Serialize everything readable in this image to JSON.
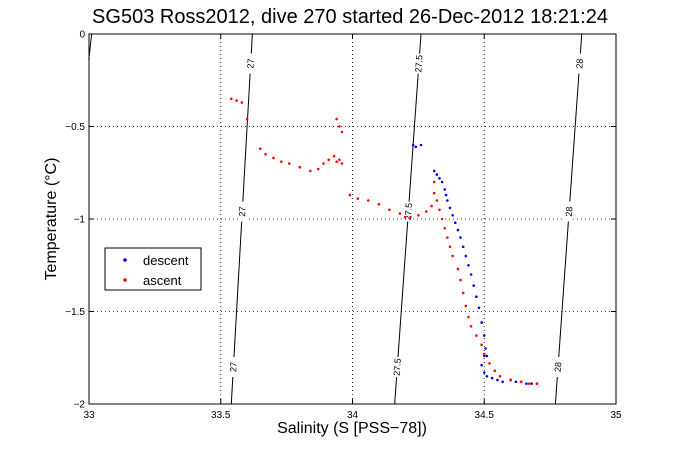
{
  "chart_data": {
    "type": "scatter",
    "title": "SG503 Ross2012, dive 270 started 26-Dec-2012 18:21:24",
    "xlabel": "Salinity (S [PSS−78])",
    "ylabel": "Temperature (°C)",
    "xlim": [
      33,
      35
    ],
    "ylim": [
      -2,
      0
    ],
    "grid": true,
    "legend_position": "left",
    "x_ticks": [
      {
        "value": 33,
        "label": "33"
      },
      {
        "value": 33.5,
        "label": "33.5"
      },
      {
        "value": 34,
        "label": "34"
      },
      {
        "value": 34.5,
        "label": "34.5"
      },
      {
        "value": 35,
        "label": "35"
      }
    ],
    "y_ticks": [
      {
        "value": 0,
        "label": "0"
      },
      {
        "value": -0.5,
        "label": "−0.5"
      },
      {
        "value": -1,
        "label": "−1"
      },
      {
        "value": -1.5,
        "label": "−1.5"
      },
      {
        "value": -2,
        "label": "−2"
      }
    ],
    "contours": [
      {
        "label": "27",
        "points": [
          [
            33.54,
            -2.0
          ],
          [
            33.62,
            0.0
          ]
        ],
        "label_positions": [
          0.1,
          0.52,
          0.92
        ]
      },
      {
        "label": "27.5",
        "points": [
          [
            34.16,
            -2.0
          ],
          [
            34.26,
            0.0
          ]
        ],
        "label_positions": [
          0.1,
          0.52,
          0.92
        ]
      },
      {
        "label": "28",
        "points": [
          [
            34.77,
            -2.0
          ],
          [
            34.87,
            0.0
          ]
        ],
        "label_positions": [
          0.1,
          0.52,
          0.92
        ]
      },
      {
        "label": "",
        "points": [
          [
            32.999,
            -0.14
          ],
          [
            33.01,
            0.0
          ]
        ],
        "label_positions": []
      }
    ],
    "series": [
      {
        "name": "descent",
        "color": "#0000ff",
        "marker": "dot",
        "points": [
          [
            34.23,
            -0.6
          ],
          [
            34.24,
            -0.61
          ],
          [
            34.26,
            -0.6
          ],
          [
            34.31,
            -0.74
          ],
          [
            34.32,
            -0.76
          ],
          [
            34.33,
            -0.78
          ],
          [
            34.34,
            -0.8
          ],
          [
            34.35,
            -0.84
          ],
          [
            34.355,
            -0.87
          ],
          [
            34.36,
            -0.9
          ],
          [
            34.37,
            -0.94
          ],
          [
            34.38,
            -0.98
          ],
          [
            34.39,
            -1.02
          ],
          [
            34.4,
            -1.06
          ],
          [
            34.41,
            -1.1
          ],
          [
            34.42,
            -1.15
          ],
          [
            34.43,
            -1.2
          ],
          [
            34.44,
            -1.25
          ],
          [
            34.45,
            -1.3
          ],
          [
            34.46,
            -1.36
          ],
          [
            34.47,
            -1.42
          ],
          [
            34.48,
            -1.48
          ],
          [
            34.49,
            -1.56
          ],
          [
            34.5,
            -1.63
          ],
          [
            34.505,
            -1.7
          ],
          [
            34.5,
            -1.74
          ],
          [
            34.51,
            -1.74
          ],
          [
            34.49,
            -1.79
          ],
          [
            34.5,
            -1.83
          ],
          [
            34.51,
            -1.85
          ],
          [
            34.53,
            -1.86
          ],
          [
            34.55,
            -1.87
          ],
          [
            34.57,
            -1.88
          ],
          [
            34.6,
            -1.87
          ],
          [
            34.62,
            -1.88
          ],
          [
            34.64,
            -1.88
          ],
          [
            34.66,
            -1.89
          ],
          [
            34.68,
            -1.89
          ],
          [
            34.7,
            -1.89
          ]
        ]
      },
      {
        "name": "ascent",
        "color": "#ff0000",
        "marker": "dot",
        "points": [
          [
            33.54,
            -0.35
          ],
          [
            33.56,
            -0.36
          ],
          [
            33.58,
            -0.37
          ],
          [
            33.6,
            -0.46
          ],
          [
            33.65,
            -0.62
          ],
          [
            33.67,
            -0.65
          ],
          [
            33.7,
            -0.67
          ],
          [
            33.73,
            -0.69
          ],
          [
            33.76,
            -0.7
          ],
          [
            33.8,
            -0.72
          ],
          [
            33.84,
            -0.74
          ],
          [
            33.87,
            -0.73
          ],
          [
            33.89,
            -0.7
          ],
          [
            33.91,
            -0.68
          ],
          [
            33.93,
            -0.66
          ],
          [
            33.95,
            -0.68
          ],
          [
            33.96,
            -0.7
          ],
          [
            33.94,
            -0.46
          ],
          [
            33.95,
            -0.5
          ],
          [
            33.96,
            -0.53
          ],
          [
            33.94,
            -0.69
          ],
          [
            33.99,
            -0.87
          ],
          [
            34.02,
            -0.89
          ],
          [
            34.06,
            -0.9
          ],
          [
            34.1,
            -0.92
          ],
          [
            34.14,
            -0.95
          ],
          [
            34.18,
            -0.97
          ],
          [
            34.2,
            -0.99
          ],
          [
            34.22,
            -0.99
          ],
          [
            34.25,
            -0.98
          ],
          [
            34.28,
            -0.96
          ],
          [
            34.3,
            -0.93
          ],
          [
            34.31,
            -0.86
          ],
          [
            34.31,
            -0.8
          ],
          [
            34.32,
            -0.9
          ],
          [
            34.33,
            -0.95
          ],
          [
            34.34,
            -1.0
          ],
          [
            34.35,
            -1.05
          ],
          [
            34.36,
            -1.1
          ],
          [
            34.37,
            -1.15
          ],
          [
            34.38,
            -1.2
          ],
          [
            34.4,
            -1.27
          ],
          [
            34.41,
            -1.33
          ],
          [
            34.42,
            -1.4
          ],
          [
            34.43,
            -1.47
          ],
          [
            34.44,
            -1.53
          ],
          [
            34.45,
            -1.58
          ],
          [
            34.47,
            -1.63
          ],
          [
            34.49,
            -1.68
          ],
          [
            34.5,
            -1.73
          ],
          [
            34.52,
            -1.78
          ],
          [
            34.54,
            -1.82
          ],
          [
            34.56,
            -1.85
          ],
          [
            34.6,
            -1.87
          ],
          [
            34.64,
            -1.88
          ],
          [
            34.67,
            -1.89
          ],
          [
            34.7,
            -1.89
          ]
        ]
      }
    ]
  }
}
